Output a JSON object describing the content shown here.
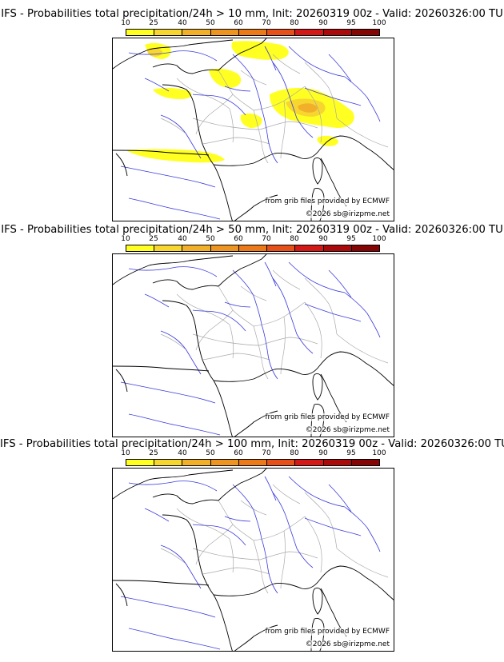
{
  "panels": [
    {
      "title": "IFS - Probabilities total precipitation/24h > 10 mm, Init: 20260319 00z - Valid: 20260326:00 TU",
      "has_probability_area": true
    },
    {
      "title": "IFS - Probabilities total precipitation/24h > 50 mm, Init: 20260319 00z - Valid: 20260326:00 TU",
      "has_probability_area": false
    },
    {
      "title": "IFS - Probabilities total precipitation/24h > 100 mm, Init: 20260319 00z - Valid: 20260326:00 TU",
      "has_probability_area": false
    }
  ],
  "legend": {
    "ticks": [
      "10",
      "25",
      "40",
      "50",
      "60",
      "70",
      "80",
      "90",
      "95",
      "100"
    ],
    "colors": [
      "#ffff22",
      "#f8d630",
      "#f2b02a",
      "#ee9420",
      "#ec7a18",
      "#e8501a",
      "#d41818",
      "#aa0a0a",
      "#850404",
      "#580000"
    ]
  },
  "credits": {
    "source": "from grib files provided by ECMWF",
    "copyright": "©2026 sb@irizpme.net"
  },
  "colors": {
    "coast": "#000000",
    "rivers": "#3a3ae0",
    "borders": "#aaaaaa",
    "prob_low": "#ffff22",
    "prob_mid": "#f8d630",
    "prob_high": "#f2b02a"
  }
}
